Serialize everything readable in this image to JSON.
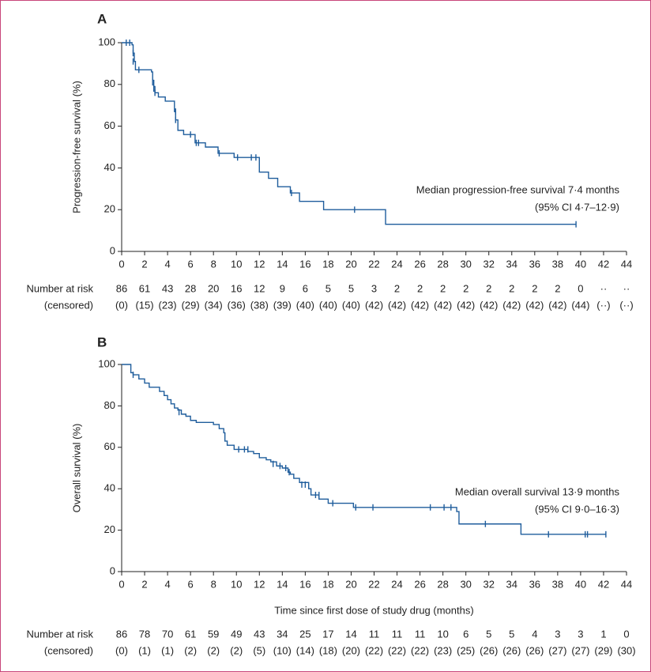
{
  "chart_data": [
    {
      "type": "step",
      "panel": "A",
      "ylabel": "Progression-free survival (%)",
      "color": "#1f5d9c",
      "xlim": [
        0,
        44
      ],
      "ylim": [
        0,
        100
      ],
      "xticks": [
        0,
        2,
        4,
        6,
        8,
        10,
        12,
        14,
        16,
        18,
        20,
        22,
        24,
        26,
        28,
        30,
        32,
        34,
        36,
        38,
        40,
        42,
        44
      ],
      "yticks": [
        0,
        20,
        40,
        60,
        80,
        100
      ],
      "x": [
        0,
        0.9,
        1.0,
        1.1,
        1.2,
        2.6,
        2.7,
        2.8,
        2.9,
        3.2,
        3.8,
        4.6,
        4.7,
        4.9,
        5.4,
        6.4,
        7.3,
        8.4,
        9.8,
        12.0,
        12.8,
        13.6,
        14.7,
        15.5,
        17.6,
        23.0,
        39.6
      ],
      "values": [
        100,
        99,
        95,
        91,
        87,
        86,
        82,
        79,
        76,
        74,
        72,
        67,
        63,
        58,
        56,
        52,
        50,
        47,
        45,
        38,
        35,
        31,
        28,
        24,
        20,
        13,
        13
      ],
      "censor_x": [
        0.4,
        0.7,
        1.0,
        1.0,
        1.5,
        2.7,
        2.8,
        2.9,
        4.7,
        4.7,
        6.0,
        6.5,
        6.7,
        8.5,
        10.1,
        11.3,
        11.7,
        14.8,
        20.3,
        39.6
      ],
      "censor_values": [
        100,
        100,
        95,
        91,
        87,
        81,
        78,
        76,
        67,
        63,
        56,
        52,
        52,
        47,
        45,
        45,
        45,
        28,
        20,
        13
      ],
      "annotation": [
        "Median progression-free survival 7·4 months",
        "(95% CI 4·7–12·9)"
      ],
      "risk_table": {
        "labels": [
          "Number at risk",
          "(censored)"
        ],
        "at_risk": [
          86,
          61,
          43,
          28,
          20,
          16,
          12,
          9,
          6,
          5,
          5,
          3,
          2,
          2,
          2,
          2,
          2,
          2,
          2,
          2,
          0,
          "··",
          "··"
        ],
        "censored": [
          "(0)",
          "(15)",
          "(23)",
          "(29)",
          "(34)",
          "(36)",
          "(38)",
          "(39)",
          "(40)",
          "(40)",
          "(40)",
          "(42)",
          "(42)",
          "(42)",
          "(42)",
          "(42)",
          "(42)",
          "(42)",
          "(42)",
          "(42)",
          "(44)",
          "(··)",
          "(··)"
        ]
      }
    },
    {
      "type": "step",
      "panel": "B",
      "ylabel": "Overall survival (%)",
      "xlabel": "Time since first dose of study drug (months)",
      "color": "#1f5d9c",
      "xlim": [
        0,
        44
      ],
      "ylim": [
        0,
        100
      ],
      "xticks": [
        0,
        2,
        4,
        6,
        8,
        10,
        12,
        14,
        16,
        18,
        20,
        22,
        24,
        26,
        28,
        30,
        32,
        34,
        36,
        38,
        40,
        42,
        44
      ],
      "yticks": [
        0,
        20,
        40,
        60,
        80,
        100
      ],
      "x": [
        0,
        0.8,
        1.0,
        1.5,
        2.0,
        2.4,
        3.3,
        3.7,
        4.0,
        4.3,
        4.6,
        4.9,
        5.2,
        5.6,
        6.0,
        6.5,
        8.0,
        8.5,
        8.9,
        9.0,
        9.2,
        9.8,
        11.0,
        11.5,
        12.0,
        12.6,
        13.0,
        13.5,
        14.0,
        14.5,
        14.7,
        15.0,
        15.5,
        16.3,
        16.5,
        17.2,
        18.0,
        20.2,
        29.2,
        29.4,
        34.8,
        42.2
      ],
      "values": [
        100,
        96,
        95,
        93,
        91,
        89,
        87,
        85,
        83,
        81,
        79,
        78,
        76,
        75,
        73,
        72,
        71,
        69,
        67,
        63,
        61,
        59,
        58,
        57,
        55,
        54,
        53,
        51,
        50,
        48,
        47,
        45,
        43,
        40,
        37,
        35,
        33,
        31,
        29,
        23,
        18,
        18
      ],
      "censor_x": [
        1.0,
        5.0,
        10.2,
        10.7,
        11.0,
        13.2,
        13.8,
        14.3,
        14.6,
        15.7,
        16.0,
        16.9,
        17.2,
        18.4,
        20.4,
        21.9,
        26.9,
        28.1,
        28.7,
        31.7,
        37.2,
        40.4,
        40.6,
        42.2
      ],
      "censor_values": [
        95,
        77,
        59,
        59,
        59,
        52,
        51,
        50,
        48,
        42,
        42,
        37,
        37,
        33,
        31,
        31,
        31,
        31,
        31,
        23,
        18,
        18,
        18,
        18
      ],
      "annotation": [
        "Median overall survival 13·9 months",
        "(95% CI 9·0–16·3)"
      ],
      "risk_table": {
        "labels": [
          "Number at risk",
          "(censored)"
        ],
        "at_risk": [
          86,
          78,
          70,
          61,
          59,
          49,
          43,
          34,
          25,
          17,
          14,
          11,
          11,
          11,
          10,
          6,
          5,
          5,
          4,
          3,
          3,
          1,
          0
        ],
        "censored": [
          "(0)",
          "(1)",
          "(1)",
          "(2)",
          "(2)",
          "(2)",
          "(5)",
          "(10)",
          "(14)",
          "(18)",
          "(20)",
          "(22)",
          "(22)",
          "(22)",
          "(23)",
          "(25)",
          "(26)",
          "(26)",
          "(26)",
          "(27)",
          "(27)",
          "(29)",
          "(30)"
        ]
      }
    }
  ]
}
